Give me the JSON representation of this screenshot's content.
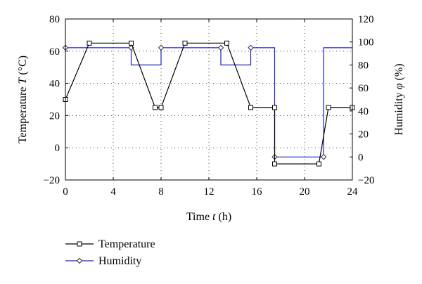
{
  "chart_data": {
    "type": "line",
    "title": "",
    "xlabel": {
      "main": "Time ",
      "var": "t",
      "unit": " (h)"
    },
    "ylabel_left": {
      "main": "Temperature ",
      "var": "T",
      "unit": " (°C)"
    },
    "ylabel_right": {
      "main": "Humidity ",
      "var": "φ",
      "unit": " (%)"
    },
    "xlim": [
      0,
      24
    ],
    "ylim_left": [
      -20,
      80
    ],
    "ylim_right": [
      -20,
      120
    ],
    "xticks": [
      0,
      4,
      8,
      12,
      16,
      20,
      24
    ],
    "yticks_left": [
      -20,
      0,
      20,
      40,
      60,
      80
    ],
    "yticks_right": [
      -20,
      0,
      20,
      40,
      60,
      80,
      100,
      120
    ],
    "grid": "dotted",
    "legend_position": "below",
    "series": [
      {
        "name": "Temperature",
        "axis": "left",
        "color": "#000000",
        "marker": "square",
        "step": false,
        "x": [
          0,
          2,
          5.5,
          7.5,
          8,
          10,
          13.5,
          15.5,
          17.5,
          17.5,
          21.2,
          22,
          24
        ],
        "y": [
          30,
          65,
          65,
          25,
          25,
          65,
          65,
          25,
          25,
          -10,
          -10,
          25,
          25
        ]
      },
      {
        "name": "Humidity",
        "axis": "right",
        "color": "#1f1fcc",
        "marker": "diamond",
        "step": true,
        "x": [
          0,
          5.5,
          5.5,
          8,
          8,
          13,
          13,
          15.5,
          15.5,
          17.5,
          17.5,
          21.6,
          21.6,
          24
        ],
        "y": [
          95,
          95,
          80,
          80,
          95,
          95,
          80,
          80,
          95,
          95,
          0,
          0,
          95,
          95
        ],
        "markers_x": [
          0,
          5.5,
          8,
          13,
          15.5,
          17.5,
          21.6
        ],
        "markers_y": [
          95,
          95,
          95,
          95,
          95,
          0,
          0
        ]
      }
    ]
  }
}
